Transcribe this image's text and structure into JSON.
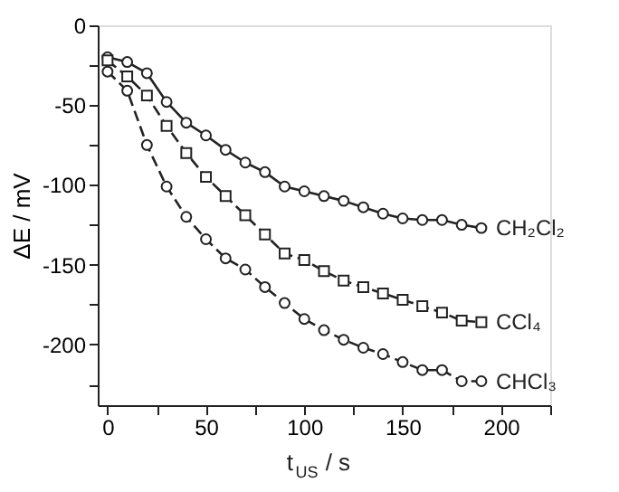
{
  "chart_data": {
    "type": "line",
    "xlabel": "t$_{US}$ / s",
    "ylabel": "ΔE / mV",
    "x": [
      0,
      10,
      20,
      30,
      40,
      50,
      60,
      70,
      80,
      90,
      100,
      110,
      120,
      130,
      140,
      150,
      160,
      170,
      180,
      190
    ],
    "xlim": [
      -5,
      225
    ],
    "xticks": [
      0,
      {
        "value": 25,
        "label": null
      },
      50,
      {
        "value": 75,
        "label": null
      },
      100,
      {
        "value": 125,
        "label": null
      },
      150,
      {
        "value": 175,
        "label": null
      },
      200,
      {
        "value": 225,
        "label": null
      }
    ],
    "ylim": [
      -238,
      0
    ],
    "yticks": [
      0,
      {
        "value": -25,
        "label": null
      },
      -50,
      {
        "value": -75,
        "label": null
      },
      -100,
      {
        "value": -125,
        "label": null
      },
      -150,
      {
        "value": -175,
        "label": null
      },
      -200,
      {
        "value": -225,
        "label": null
      }
    ],
    "grid": false,
    "series": [
      {
        "name": "CH₂Cl₂",
        "color": "#222222",
        "marker": "circle",
        "line_style": "solid",
        "values": [
          -20,
          -23,
          -30,
          -48,
          -61,
          -69,
          -78,
          -86,
          -92,
          -101,
          -104,
          -107,
          -110,
          -114,
          -118,
          -121,
          -122,
          -122,
          -125,
          -127
        ]
      },
      {
        "name": "CCl₄",
        "color": "#222222",
        "marker": "square",
        "line_style": "dashed",
        "values": [
          -22,
          -32,
          -44,
          -63,
          -80,
          -95,
          -107,
          -119,
          -131,
          -143,
          -147,
          -154,
          -160,
          -164,
          -168,
          -172,
          -176,
          -180,
          -185,
          -186
        ]
      },
      {
        "name": "CHCl₃",
        "color": "#222222",
        "marker": "circle",
        "line_style": "dashed",
        "values": [
          -29,
          -41,
          -75,
          -101,
          -120,
          -134,
          -146,
          -153,
          -164,
          -174,
          -184,
          -191,
          -197,
          -202,
          -206,
          -211,
          -216,
          -216,
          -223,
          -223
        ]
      }
    ]
  }
}
